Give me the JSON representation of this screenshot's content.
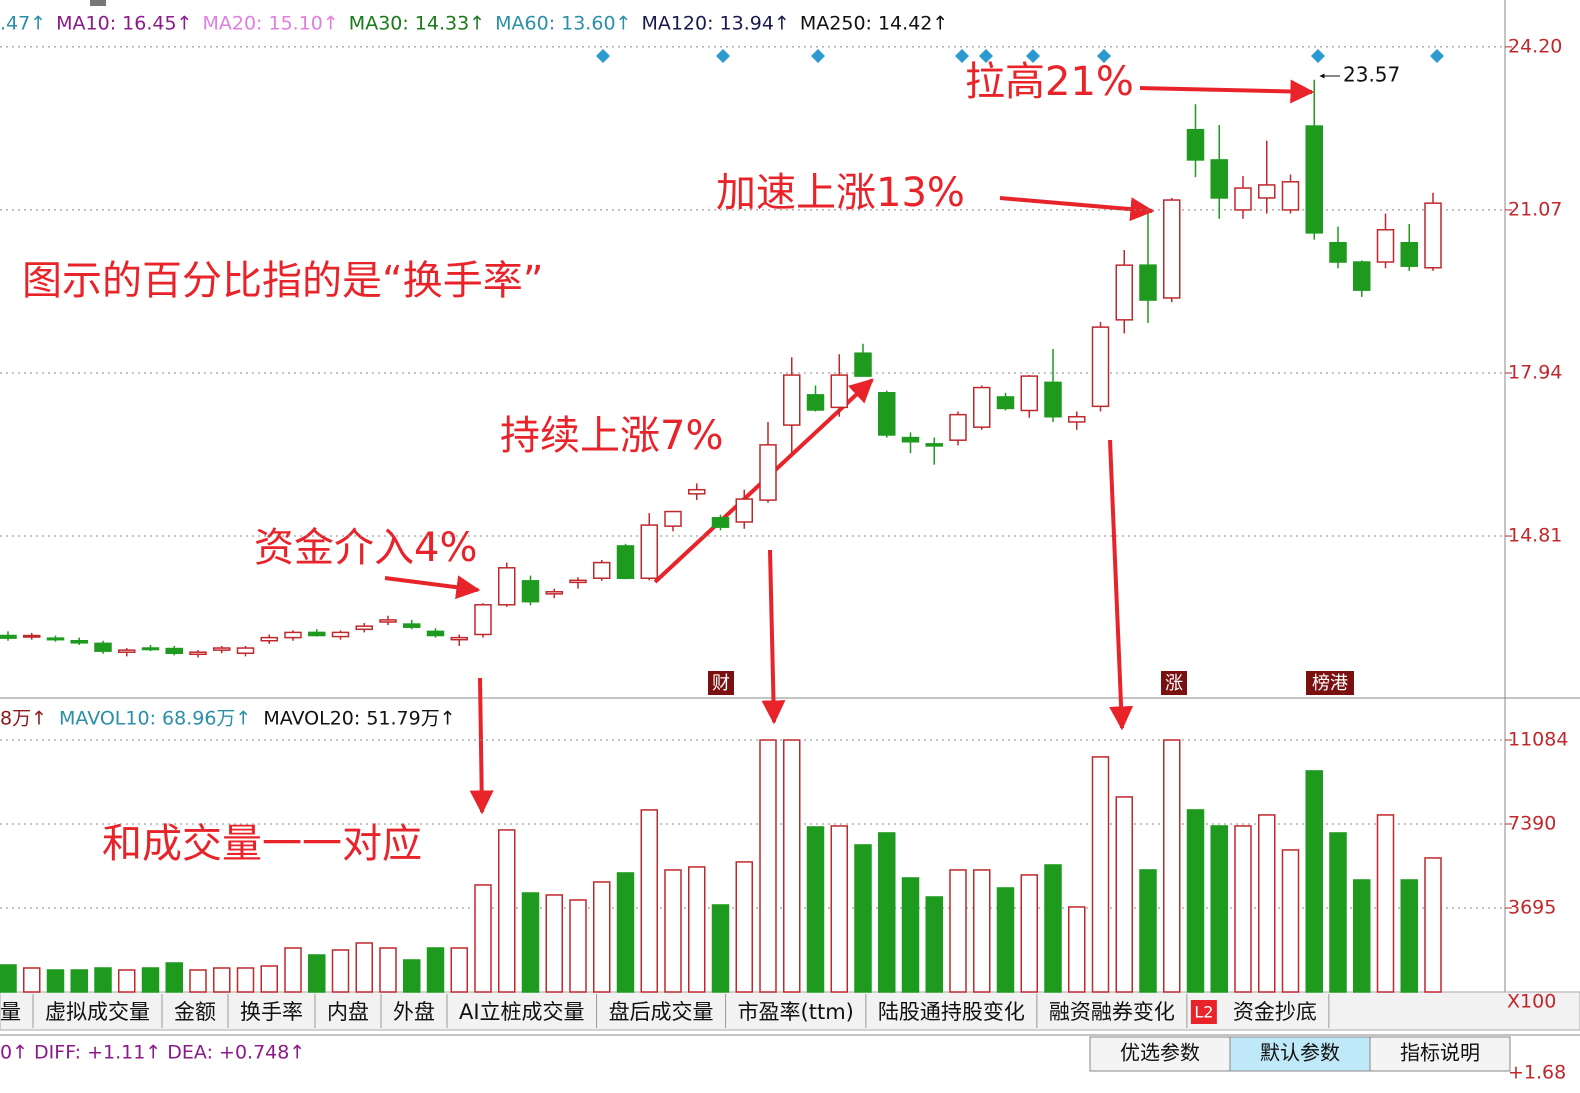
{
  "chart_data": {
    "type": "candlestick",
    "ma_legend": [
      {
        "text": ".47↑",
        "color": "#2a8fa8"
      },
      {
        "text": "MA10: 16.45↑",
        "color": "#8b1a8b"
      },
      {
        "text": "MA20: 15.10↑",
        "color": "#e07fe0"
      },
      {
        "text": "MA30: 14.33↑",
        "color": "#1a7a1a"
      },
      {
        "text": "MA60: 13.60↑",
        "color": "#2a8fa8"
      },
      {
        "text": "MA120: 13.94↑",
        "color": "#1a1a50"
      },
      {
        "text": "MA250: 14.42↑",
        "color": "#111111"
      }
    ],
    "annotations": [
      "拉高21%",
      "加速上涨13%",
      "图示的百分比指的是“换手率”",
      "持续上涨7%",
      "资金介入4%",
      "和成交量一一对应"
    ],
    "high_label": "23.57",
    "event_markers": [
      "财",
      "涨",
      "榜港"
    ],
    "ylim": [
      11.72,
      25.1
    ],
    "yticks": [
      {
        "value": 24.2,
        "label": "24.20"
      },
      21.07,
      17.94,
      14.81
    ],
    "up_color": "#c0282c",
    "down_color": "#1e9a1e",
    "open": [
      12.9,
      12.88,
      12.85,
      12.8,
      12.75,
      12.58,
      12.66,
      12.65,
      12.54,
      12.62,
      12.56,
      12.8,
      12.86,
      12.96,
      12.88,
      13.02,
      13.16,
      13.12,
      12.98,
      12.82,
      12.92,
      13.49,
      13.95,
      13.7,
      13.92,
      14.0,
      14.62,
      14.0,
      15.0,
      15.62,
      15.16,
      15.08,
      15.5,
      16.94,
      17.52,
      17.28,
      18.32,
      17.56,
      16.7,
      16.58,
      16.65,
      16.9,
      17.48,
      17.22,
      17.76,
      17.0,
      17.3,
      18.96,
      20.01,
      19.38,
      22.61,
      22.03,
      21.07,
      21.3,
      21.07,
      22.68,
      20.44,
      20.07,
      20.07,
      20.44,
      19.96
    ],
    "high": [
      12.98,
      12.95,
      12.9,
      12.86,
      12.8,
      12.66,
      12.72,
      12.7,
      12.62,
      12.7,
      12.7,
      12.92,
      13.0,
      13.02,
      13.0,
      13.14,
      13.28,
      13.2,
      13.04,
      12.92,
      13.52,
      14.3,
      14.05,
      13.8,
      14.02,
      14.35,
      14.66,
      15.25,
      15.28,
      15.82,
      15.22,
      15.7,
      17.0,
      18.24,
      17.7,
      18.3,
      18.5,
      17.6,
      16.8,
      16.7,
      17.2,
      17.7,
      17.56,
      17.9,
      18.4,
      17.2,
      18.92,
      20.3,
      21.0,
      21.3,
      23.1,
      22.7,
      21.72,
      22.4,
      21.75,
      23.57,
      20.75,
      20.1,
      21.0,
      20.8,
      21.4
    ],
    "low": [
      12.8,
      12.82,
      12.78,
      12.72,
      12.55,
      12.5,
      12.6,
      12.52,
      12.48,
      12.56,
      12.5,
      12.74,
      12.8,
      12.88,
      12.82,
      12.96,
      13.1,
      13.02,
      12.86,
      12.7,
      12.86,
      13.45,
      13.48,
      13.62,
      13.8,
      13.95,
      13.98,
      13.96,
      14.9,
      15.5,
      14.92,
      14.95,
      15.45,
      16.4,
      17.2,
      17.1,
      17.9,
      16.7,
      16.4,
      16.18,
      16.55,
      16.85,
      17.22,
      17.08,
      17.0,
      16.85,
      17.2,
      18.7,
      18.9,
      19.3,
      21.7,
      20.9,
      20.9,
      21.0,
      21.0,
      20.5,
      19.95,
      19.4,
      19.95,
      19.9,
      19.9
    ],
    "close": [
      12.85,
      12.9,
      12.82,
      12.76,
      12.6,
      12.62,
      12.64,
      12.56,
      12.58,
      12.66,
      12.66,
      12.86,
      12.96,
      12.9,
      12.96,
      13.08,
      13.2,
      13.06,
      12.9,
      12.86,
      13.49,
      14.2,
      13.55,
      13.74,
      13.96,
      14.3,
      14.0,
      15.02,
      15.28,
      15.7,
      14.98,
      15.52,
      16.56,
      17.9,
      17.23,
      17.9,
      17.88,
      16.75,
      16.62,
      16.54,
      17.14,
      17.66,
      17.26,
      17.88,
      17.1,
      17.1,
      18.82,
      20.01,
      19.34,
      21.26,
      22.03,
      21.3,
      21.49,
      21.55,
      21.61,
      20.63,
      20.07,
      19.53,
      20.69,
      19.99,
      21.2
    ],
    "volume_legend": [
      "8万↑",
      "MAVOL10: 68.96万↑",
      "MAVOL20: 51.79万↑"
    ],
    "volume_legend_colors": [
      "#8b1a1a",
      "#2a8fa8",
      "#111111"
    ],
    "volume": [
      1190,
      1056,
      968,
      968,
      1056,
      968,
      1056,
      1276,
      968,
      1056,
      1056,
      1144,
      1936,
      1628,
      1848,
      2156,
      1936,
      1408,
      1936,
      1936,
      4708,
      7128,
      4356,
      4268,
      4048,
      4840,
      5236,
      8008,
      5368,
      5500,
      3828,
      5720,
      11084,
      11084,
      7260,
      7304,
      6468,
      6996,
      5016,
      4180,
      5368,
      5368,
      4576,
      5148,
      5588,
      3740,
      10340,
      8580,
      5368,
      11084,
      8008,
      7304,
      7304,
      7788,
      6248,
      9724,
      6996,
      4928,
      7788,
      4928,
      5896
    ],
    "vol_ylim": [
      0,
      12624
    ],
    "vol_yticks": [
      11084,
      7390,
      3695
    ],
    "vol_unit": "X100",
    "tabs": [
      "量",
      "虚拟成交量",
      "金额",
      "换手率",
      "内盘",
      "外盘",
      "AI立桩成交量",
      "盘后成交量",
      "市盈率(ttm)",
      "陆股通持股变化",
      "融资融券变化",
      "L2",
      "资金抄底"
    ],
    "macd_legend": "0↑  DIFF: +1.11↑  DEA: +0.748↑",
    "buttons": [
      "优选参数",
      "默认参数",
      "指标说明"
    ],
    "macd_tick": "+1.68"
  }
}
